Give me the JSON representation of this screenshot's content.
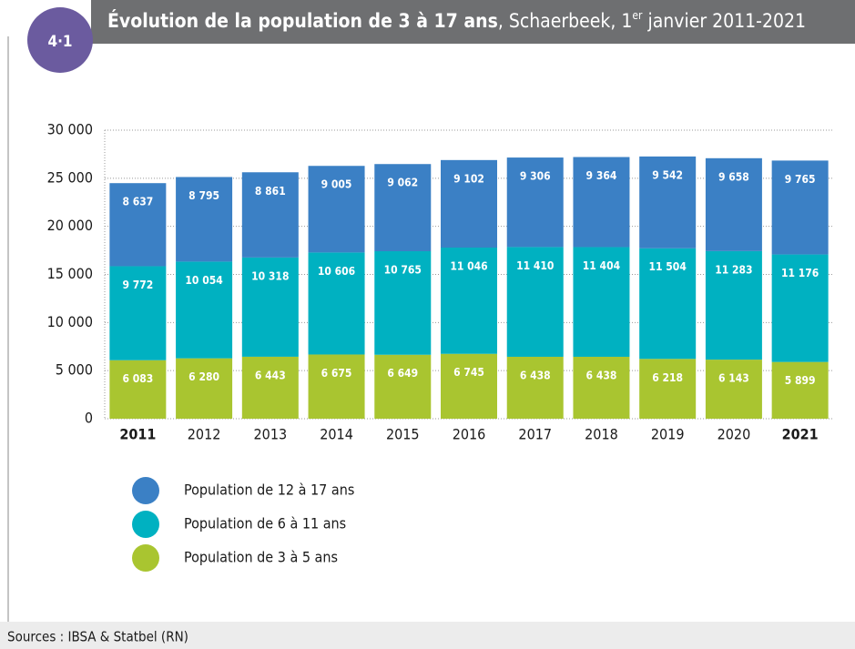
{
  "chart_data": {
    "type": "stacked_bar",
    "badge": "4·1",
    "title": "Évolution de la population de 3 à 17 ans",
    "subtitle": [
      ", Schaerbeek, 1",
      "er",
      " janvier 2011-2021"
    ],
    "categories": [
      "2011",
      "2012",
      "2013",
      "2014",
      "2015",
      "2016",
      "2017",
      "2018",
      "2019",
      "2020",
      "2021"
    ],
    "bold_category_indices": [
      0,
      10
    ],
    "series": [
      {
        "name": "Population de 3 à 5 ans",
        "color": "#a9c530",
        "values": [
          6083,
          6280,
          6443,
          6675,
          6649,
          6745,
          6438,
          6438,
          6218,
          6143,
          5899
        ],
        "value_labels": [
          "6 083",
          "6 280",
          "6 443",
          "6 675",
          "6 649",
          "6 745",
          "6 438",
          "6 438",
          "6 218",
          "6 143",
          "5 899"
        ]
      },
      {
        "name": "Population de 6 à 11 ans",
        "color": "#00b1c1",
        "values": [
          9772,
          10054,
          10318,
          10606,
          10765,
          11046,
          11410,
          11404,
          11504,
          11283,
          11176
        ],
        "value_labels": [
          "9 772",
          "10 054",
          "10 318",
          "10 606",
          "10 765",
          "11 046",
          "11 410",
          "11 404",
          "11 504",
          "11 283",
          "11 176"
        ]
      },
      {
        "name": "Population de 12 à 17 ans",
        "color": "#3b80c5",
        "values": [
          8637,
          8795,
          8861,
          9005,
          9062,
          9102,
          9306,
          9364,
          9542,
          9658,
          9765
        ],
        "value_labels": [
          "8 637",
          "8 795",
          "8 861",
          "9 005",
          "9 062",
          "9 102",
          "9 306",
          "9 364",
          "9 542",
          "9 658",
          "9 765"
        ]
      }
    ],
    "ylim": [
      0,
      30000
    ],
    "yticks": [
      {
        "value": 0,
        "label": "0"
      },
      {
        "value": 5000,
        "label": "5 000"
      },
      {
        "value": 10000,
        "label": "10 000"
      },
      {
        "value": 15000,
        "label": "15 000"
      },
      {
        "value": 20000,
        "label": "20 000"
      },
      {
        "value": 25000,
        "label": "25 000"
      },
      {
        "value": 30000,
        "label": "30 000"
      }
    ],
    "grid": true,
    "source": "Sources : IBSA & Statbel (RN)"
  }
}
